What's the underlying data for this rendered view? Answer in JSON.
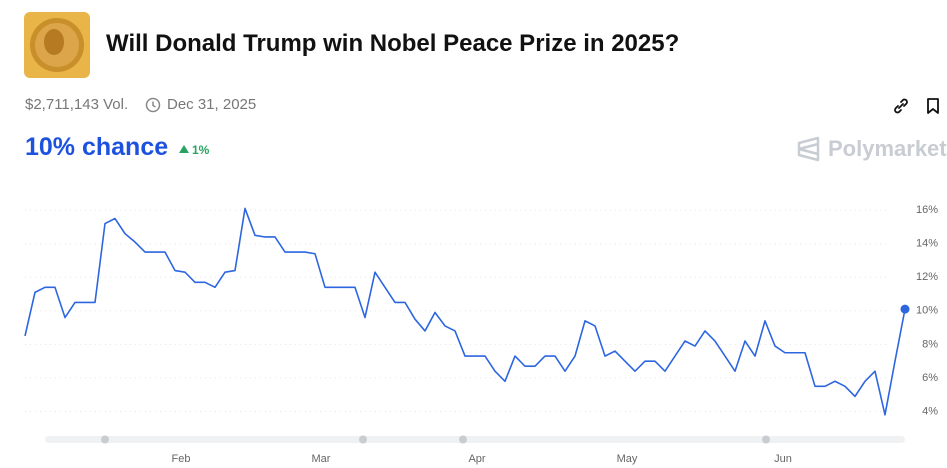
{
  "header": {
    "title": "Will Donald Trump win Nobel Peace Prize in 2025?",
    "volume": "$2,711,143 Vol.",
    "end_date": "Dec 31, 2025",
    "chance": "10% chance",
    "change": "1%",
    "brand": "Polymarket"
  },
  "chart_data": {
    "type": "line",
    "color": "#2d66e0",
    "values": [
      8.5,
      11.1,
      11.4,
      11.4,
      9.6,
      10.5,
      10.5,
      10.5,
      15.2,
      15.5,
      14.6,
      14.1,
      13.5,
      13.5,
      13.5,
      12.4,
      12.3,
      11.7,
      11.7,
      11.4,
      12.3,
      12.4,
      16.1,
      14.5,
      14.4,
      14.4,
      13.5,
      13.5,
      13.5,
      13.4,
      11.4,
      11.4,
      11.4,
      11.4,
      9.6,
      12.3,
      11.4,
      10.5,
      10.5,
      9.5,
      8.8,
      9.9,
      9.1,
      8.8,
      7.3,
      7.3,
      7.3,
      6.4,
      5.8,
      7.3,
      6.7,
      6.7,
      7.3,
      7.3,
      6.4,
      7.3,
      9.4,
      9.1,
      7.3,
      7.6,
      7.0,
      6.4,
      7.0,
      7.0,
      6.4,
      7.3,
      8.2,
      7.9,
      8.8,
      8.2,
      7.3,
      6.4,
      8.2,
      7.3,
      9.4,
      7.9,
      7.5,
      7.5,
      7.5,
      5.5,
      5.5,
      5.8,
      5.5,
      4.9,
      5.8,
      6.4,
      3.8,
      7.0,
      10.1
    ],
    "xlim": [
      0,
      88
    ],
    "xticks": [
      {
        "value": 15.6,
        "label": "Feb"
      },
      {
        "value": 29.6,
        "label": "Mar"
      },
      {
        "value": 45.2,
        "label": "Apr"
      },
      {
        "value": 60.2,
        "label": "May"
      },
      {
        "value": 75.8,
        "label": "Jun"
      }
    ],
    "ylim": [
      2.3,
      17.2
    ],
    "yticks": [
      {
        "value": 4,
        "label": "4%"
      },
      {
        "value": 6,
        "label": "6%"
      },
      {
        "value": 8,
        "label": "8%"
      },
      {
        "value": 10,
        "label": "10%"
      },
      {
        "value": 12,
        "label": "12%"
      },
      {
        "value": 14,
        "label": "14%"
      },
      {
        "value": 16,
        "label": "16%"
      }
    ],
    "grid": true
  }
}
